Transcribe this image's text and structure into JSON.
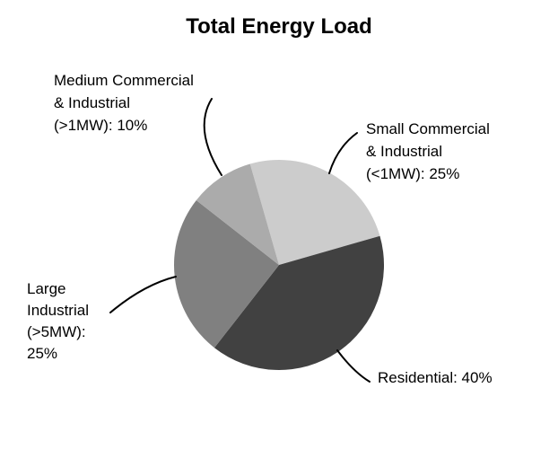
{
  "title": "Total Energy Load",
  "chart_data": {
    "type": "pie",
    "title": "Total Energy Load",
    "start_angle_deg": 106,
    "direction": "clockwise",
    "legend_position": "none",
    "labels_style": "external-callouts",
    "slices": [
      {
        "id": "small-commercial-industrial",
        "label": "Small Commercial & Industrial (<1MW)",
        "value_pct": 25,
        "color": "#CCCCCC"
      },
      {
        "id": "residential",
        "label": "Residential",
        "value_pct": 40,
        "color": "#414141"
      },
      {
        "id": "large-industrial",
        "label": "Large Industrial (>5MW)",
        "value_pct": 25,
        "color": "#808080"
      },
      {
        "id": "medium-commercial-industrial",
        "label": "Medium Commercial & Industrial (>1MW)",
        "value_pct": 10,
        "color": "#ABABAB"
      }
    ]
  },
  "labels": {
    "medium": {
      "lines": [
        "Medium Commercial",
        "& Industrial",
        "(>1MW): 10%"
      ]
    },
    "small": {
      "lines": [
        "Small Commercial",
        "& Industrial",
        "(<1MW): 25%"
      ]
    },
    "large": {
      "lines": [
        "Large",
        "Industrial",
        "(>5MW):",
        "25%"
      ]
    },
    "residential": {
      "lines": [
        "Residential: 40%"
      ]
    }
  },
  "colors": {
    "background": "#FFFFFF",
    "text": "#000000",
    "leader_line": "#000000"
  }
}
